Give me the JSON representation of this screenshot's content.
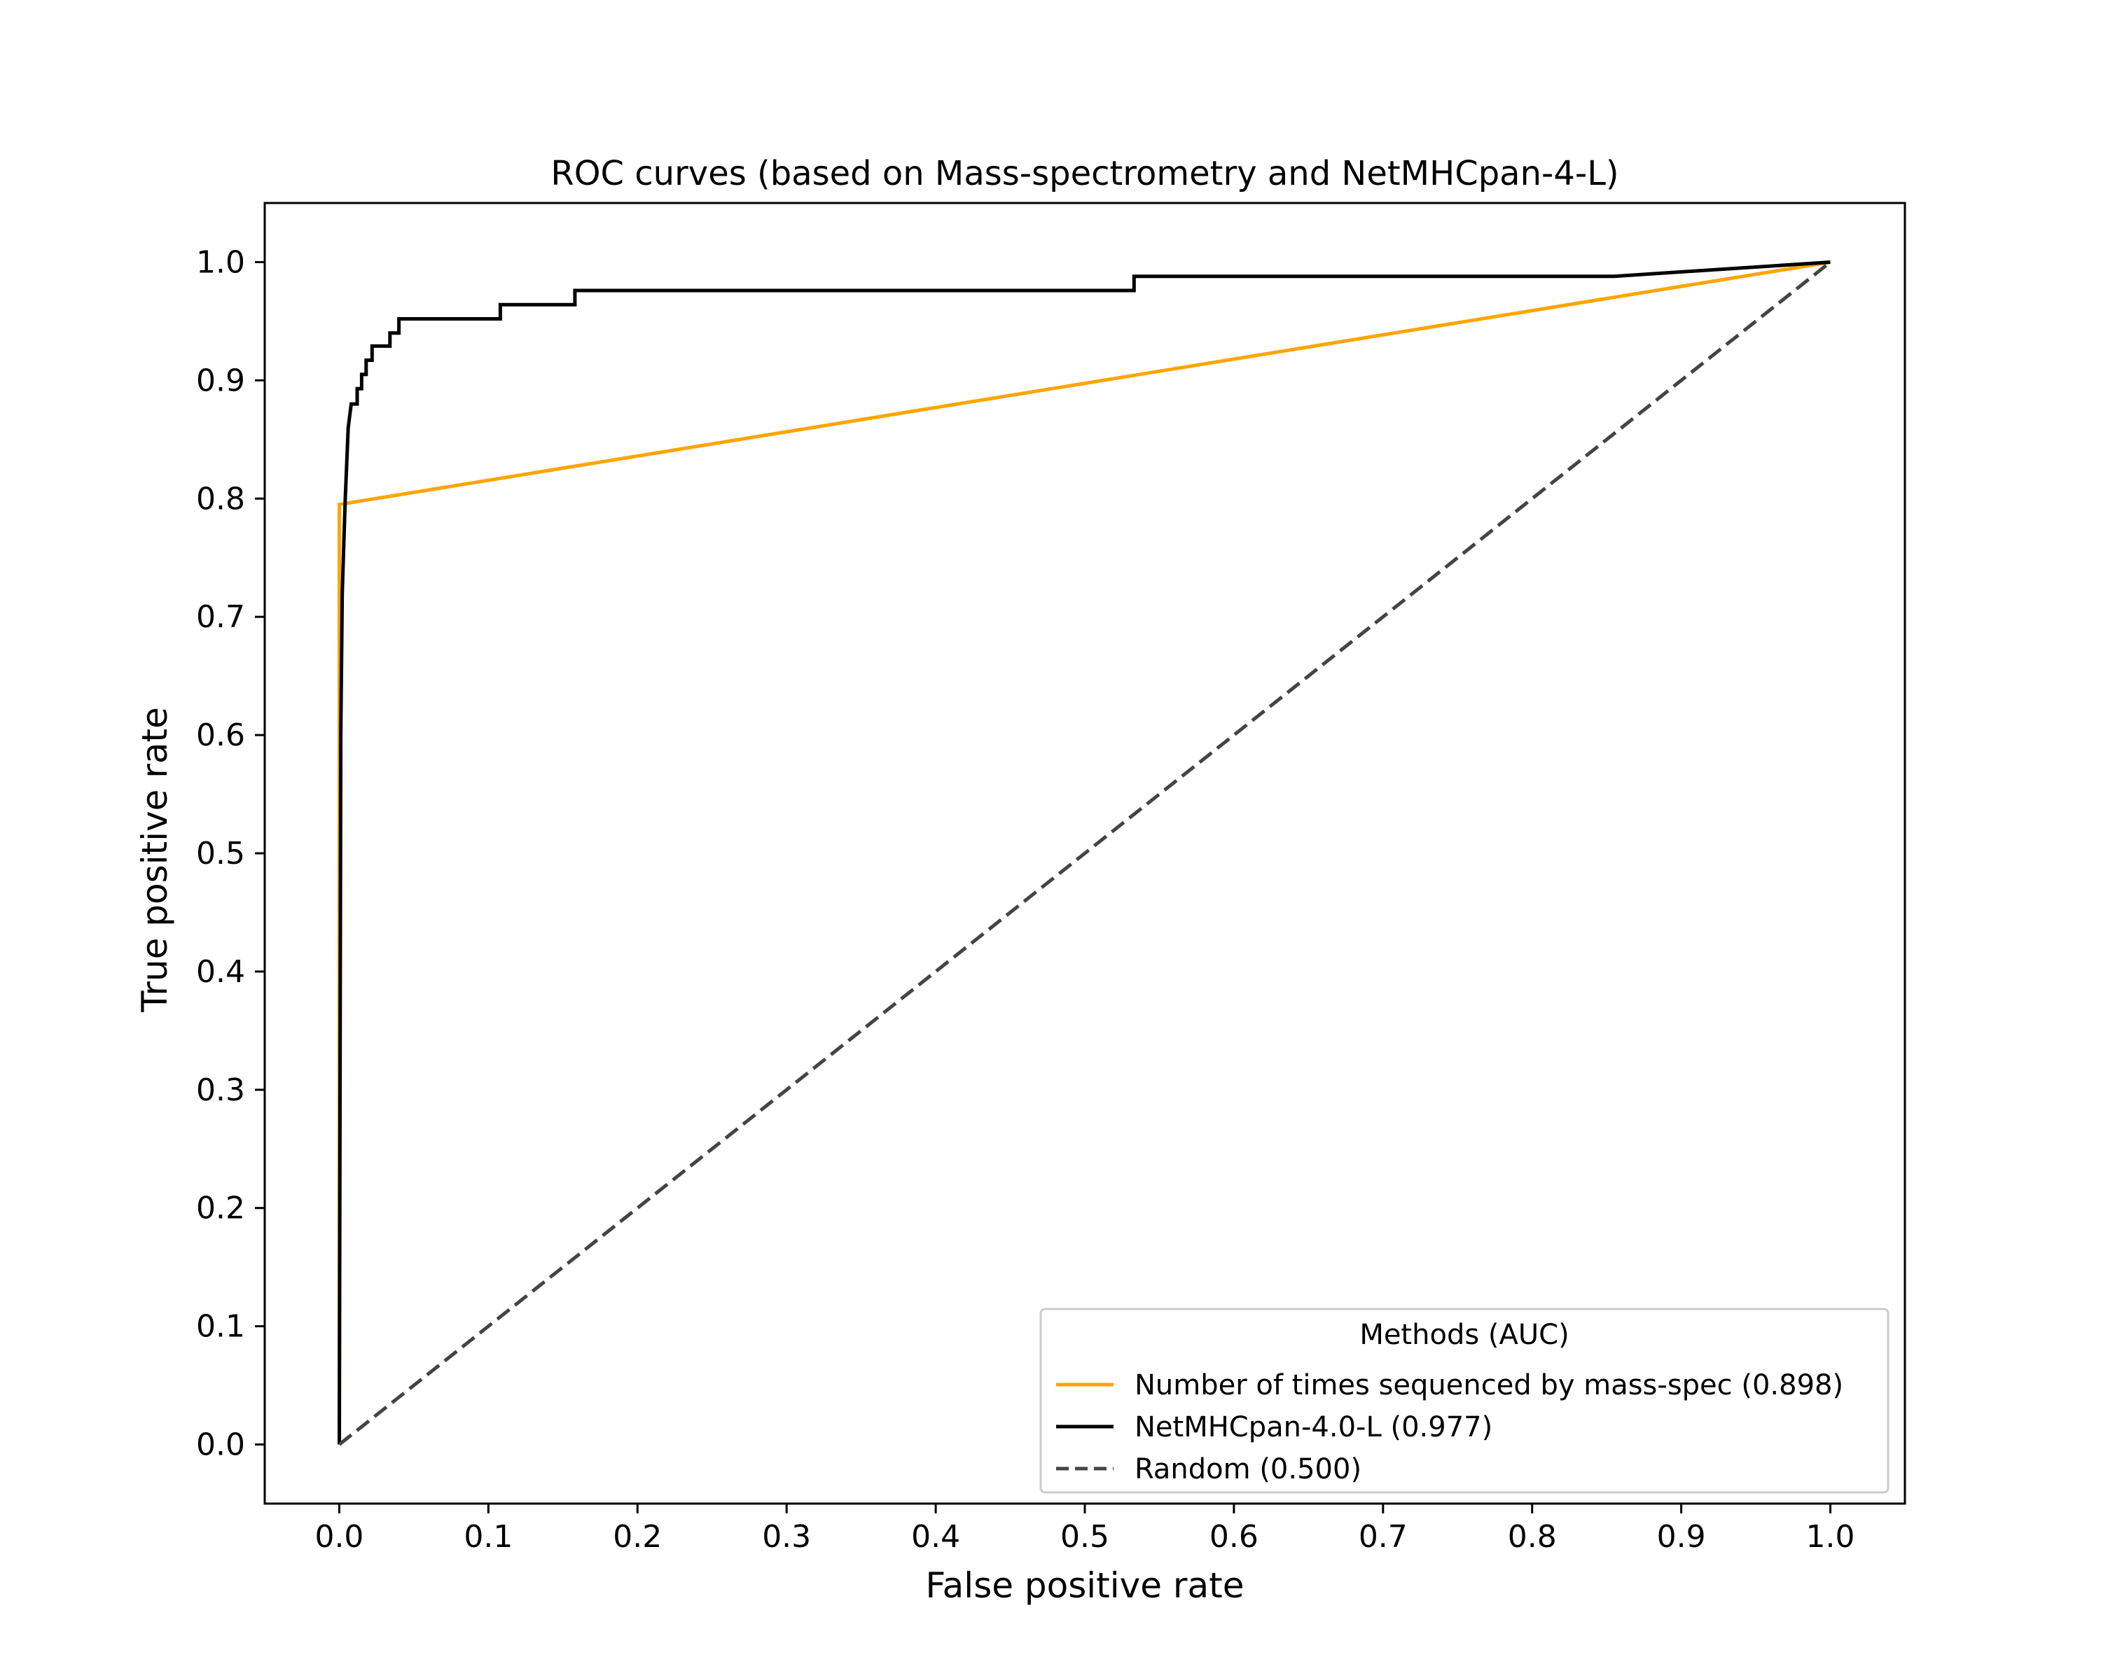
{
  "chart_data": {
    "type": "line",
    "title": "ROC curves (based on Mass-spectrometry and NetMHCpan-4-L)",
    "xlabel": "False positive rate",
    "ylabel": "True positive rate",
    "xlim": [
      -0.05,
      1.05
    ],
    "ylim": [
      -0.05,
      1.05
    ],
    "x_ticks": [
      "0.0",
      "0.1",
      "0.2",
      "0.3",
      "0.4",
      "0.5",
      "0.6",
      "0.7",
      "0.8",
      "0.9",
      "1.0"
    ],
    "y_ticks": [
      "0.0",
      "0.1",
      "0.2",
      "0.3",
      "0.4",
      "0.5",
      "0.6",
      "0.7",
      "0.8",
      "0.9",
      "1.0"
    ],
    "grid": false,
    "legend": {
      "title": "Methods (AUC)",
      "placement": "lower-right"
    },
    "series": [
      {
        "name": "Number of times sequenced by mass-spec (0.898)",
        "color": "#ffa500",
        "style": "solid",
        "x": [
          0.0,
          0.0,
          1.0
        ],
        "y": [
          0.0,
          0.795,
          1.0
        ]
      },
      {
        "name": "NetMHCpan-4.0-L (0.977)",
        "color": "#000000",
        "style": "solid",
        "x": [
          0.0,
          0.001,
          0.002,
          0.003,
          0.004,
          0.005,
          0.006,
          0.008,
          0.008,
          0.012,
          0.012,
          0.015,
          0.015,
          0.018,
          0.018,
          0.022,
          0.022,
          0.034,
          0.034,
          0.04,
          0.04,
          0.108,
          0.108,
          0.158,
          0.158,
          0.533,
          0.533,
          0.855,
          1.0
        ],
        "y": [
          0.0,
          0.6,
          0.72,
          0.76,
          0.8,
          0.83,
          0.86,
          0.88,
          0.88,
          0.88,
          0.893,
          0.893,
          0.905,
          0.905,
          0.917,
          0.917,
          0.929,
          0.929,
          0.94,
          0.94,
          0.952,
          0.952,
          0.964,
          0.964,
          0.976,
          0.976,
          0.988,
          0.988,
          1.0
        ]
      },
      {
        "name": "Random (0.500)",
        "color": "#444444",
        "style": "dashed",
        "x": [
          0.0,
          1.0
        ],
        "y": [
          0.0,
          1.0
        ]
      }
    ]
  }
}
